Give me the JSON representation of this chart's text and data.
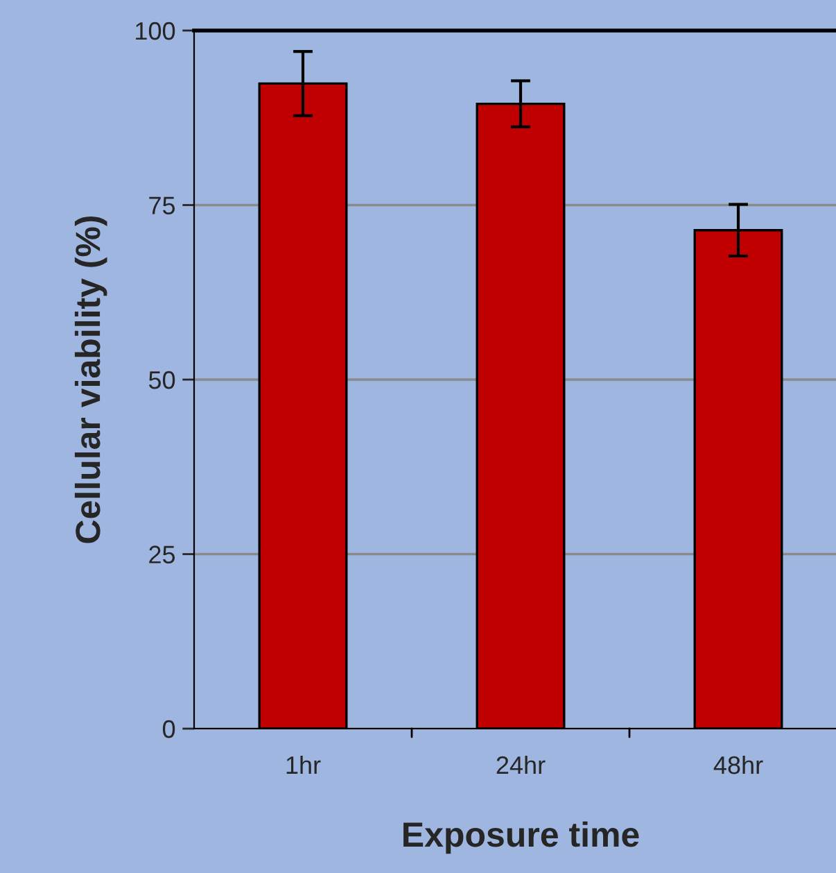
{
  "chart_data": {
    "type": "bar",
    "xlabel": "Exposure time",
    "ylabel": "Cellular viability (%)",
    "categories": [
      "1hr",
      "24hr",
      "48hr"
    ],
    "values": [
      92.4,
      89.5,
      71.4
    ],
    "errors": [
      4.6,
      3.3,
      3.7
    ],
    "color": "#c00000",
    "ylim": [
      0,
      100
    ],
    "yticks": [
      0,
      25,
      50,
      75,
      100
    ],
    "grid": "y",
    "legend": false
  }
}
